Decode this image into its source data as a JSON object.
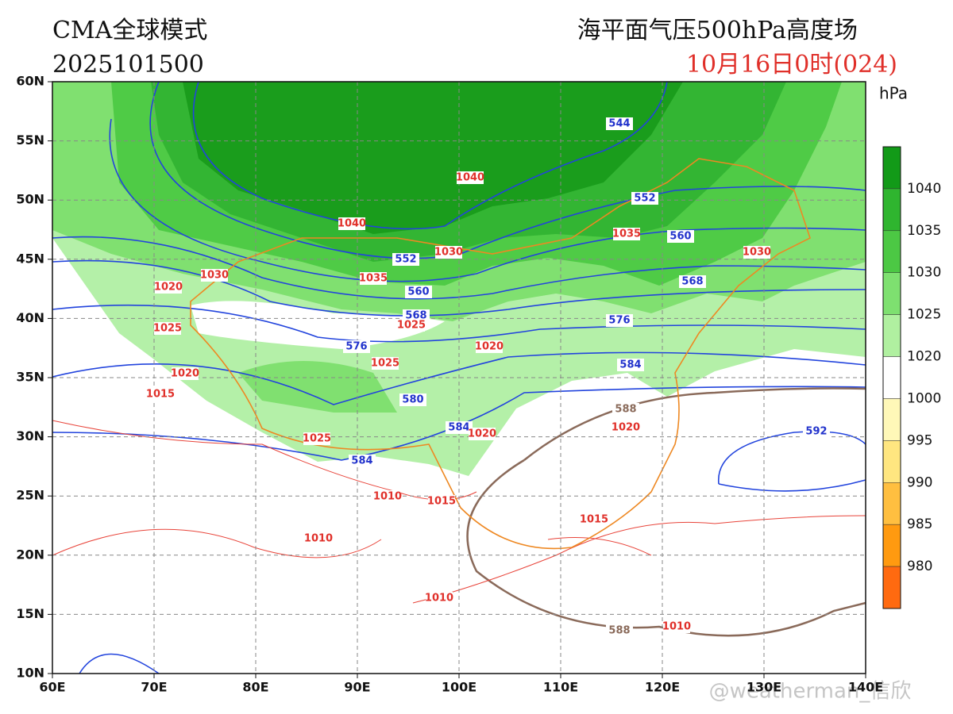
{
  "header": {
    "model": "CMA全球模式",
    "run": "2025101500",
    "product": "海平面气压500hPa高度场",
    "valid": "10月16日0时(024)"
  },
  "unit": "hPa",
  "map": {
    "lon_labels": [
      "60E",
      "70E",
      "80E",
      "90E",
      "100E",
      "110E",
      "120E",
      "130E",
      "140E"
    ],
    "lat_labels": [
      "60N",
      "55N",
      "50N",
      "45N",
      "40N",
      "35N",
      "30N",
      "25N",
      "20N",
      "15N",
      "10N"
    ]
  },
  "colorbar": {
    "labels": [
      "1040",
      "1035",
      "1030",
      "1025",
      "1020",
      "1000",
      "995",
      "990",
      "985",
      "980"
    ]
  },
  "height_labels": [
    "544",
    "552",
    "560",
    "568",
    "576",
    "584",
    "592",
    "552",
    "560",
    "568",
    "576",
    "580",
    "584",
    "584",
    "588",
    "588"
  ],
  "pressure_labels": [
    "1040",
    "1040",
    "1035",
    "1030",
    "1030",
    "1030",
    "1035",
    "1020",
    "1025",
    "1025",
    "1020",
    "1025",
    "1020",
    "1015",
    "1025",
    "1020",
    "1020",
    "1010",
    "1015",
    "1015",
    "1010",
    "1010",
    "1010"
  ],
  "watermark": "@weatherman_信欣"
}
